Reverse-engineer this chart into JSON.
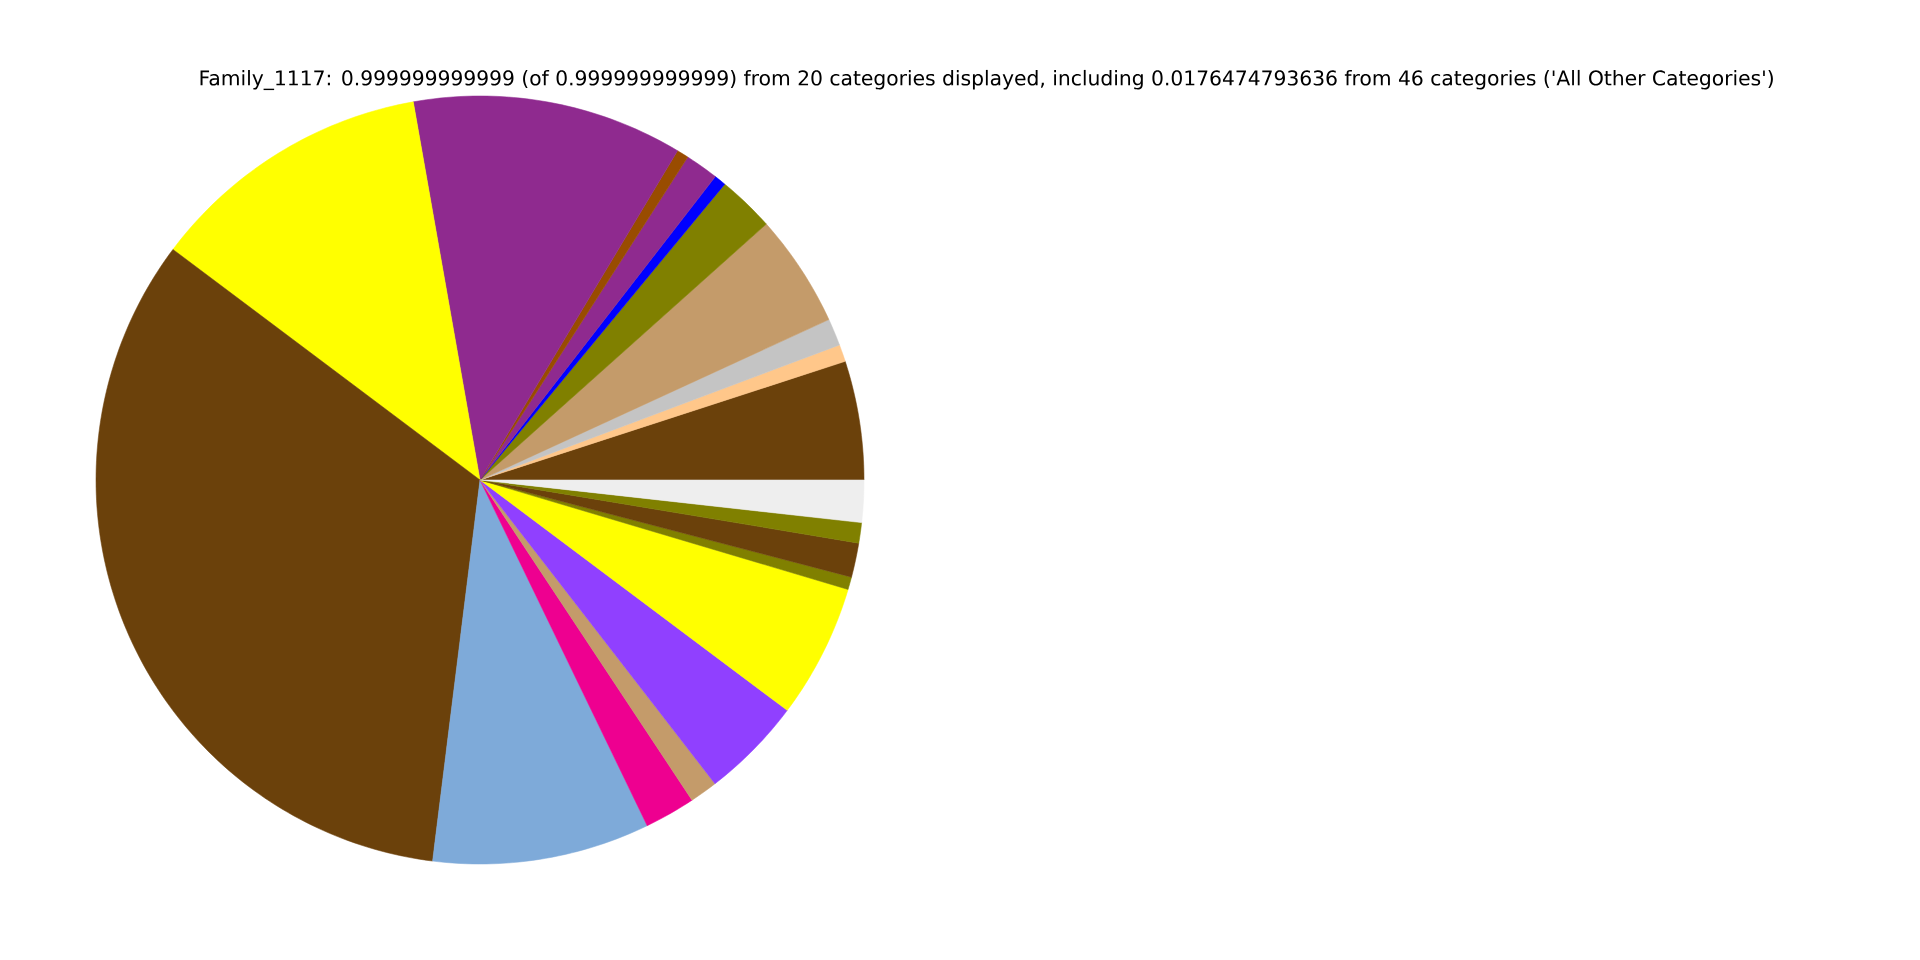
{
  "chart_data": {
    "type": "pie",
    "title": "Family_1117: 0.999999999999 (of 0.999999999999) from 20 categories displayed, including 0.0176474793636 from 46 categories ('All Other Categories')",
    "categories": [
      null,
      null,
      null,
      null,
      null,
      null,
      null,
      null,
      null,
      null,
      null,
      null,
      null,
      null,
      null,
      null,
      null,
      null,
      null,
      null
    ],
    "values": [
      5.0,
      0.72,
      1.14,
      4.75,
      2.39,
      0.5,
      1.4,
      0.5,
      11.38,
      11.97,
      33.28,
      9.14,
      2.14,
      1.17,
      4.28,
      5.64,
      0.53,
      1.44,
      0.86,
      1.77
    ],
    "colors": [
      "#6b410b",
      "#ffc78a",
      "#c4c4c4",
      "#c49b6a",
      "#808000",
      "#0000ff",
      "#8f2a8f",
      "#994c00",
      "#8f2a8f",
      "#ffff00",
      "#6b410b",
      "#7eaad9",
      "#ee0090",
      "#c49b6a",
      "#9040ff",
      "#ffff00",
      "#808000",
      "#6b410b",
      "#808000",
      "#eeeeee"
    ]
  }
}
